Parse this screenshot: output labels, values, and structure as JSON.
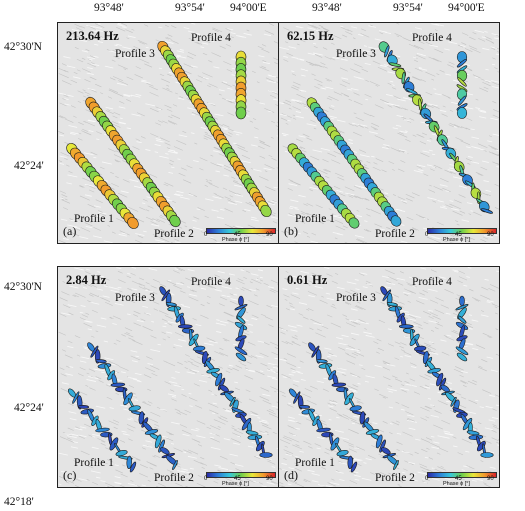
{
  "axes": {
    "lon_labels": [
      "93°48'",
      "93°54'",
      "94°00'E"
    ],
    "lat_labels": [
      "42°30'N",
      "42°24'",
      "42°18'"
    ]
  },
  "colorbar": {
    "ticks": [
      "0",
      "45",
      "90"
    ],
    "title": "Phase ϕ [°]"
  },
  "profile_labels": [
    "Profile 1",
    "Profile 2",
    "Profile 3",
    "Profile 4"
  ],
  "panels": [
    {
      "tag": "(a)",
      "frequency": "213.64 Hz",
      "ellipse_mode": "filled",
      "phase_range": [
        45,
        75
      ]
    },
    {
      "tag": "(b)",
      "frequency": "62.15 Hz",
      "ellipse_mode": "mixed",
      "phase_range": [
        15,
        55
      ]
    },
    {
      "tag": "(c)",
      "frequency": "2.84 Hz",
      "ellipse_mode": "thin",
      "phase_range": [
        5,
        25
      ]
    },
    {
      "tag": "(d)",
      "frequency": "0.61 Hz",
      "ellipse_mode": "thin",
      "phase_range": [
        5,
        25
      ]
    }
  ]
}
